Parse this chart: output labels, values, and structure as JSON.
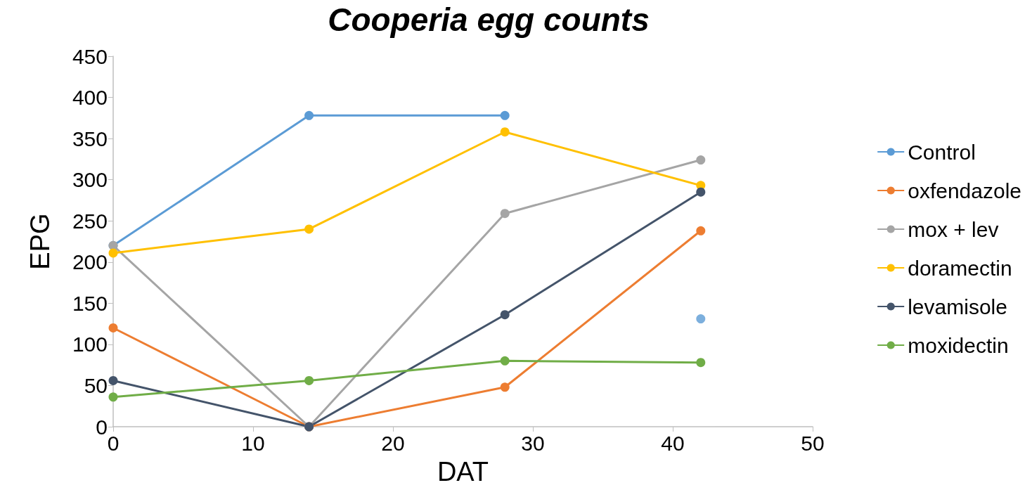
{
  "chart_data": {
    "type": "line",
    "title": "Cooperia egg counts",
    "xlabel": "DAT",
    "ylabel": "EPG",
    "x": [
      0,
      14,
      28,
      42
    ],
    "xlim": [
      0,
      50
    ],
    "xticks": [
      0,
      10,
      20,
      30,
      40,
      50
    ],
    "ylim": [
      0,
      450
    ],
    "yticks": [
      0,
      50,
      100,
      150,
      200,
      250,
      300,
      350,
      400,
      450
    ],
    "grid": false,
    "legend": "right",
    "marker": "circle",
    "line_style": "solid",
    "series": [
      {
        "name": "Control",
        "color": "#5b9bd5",
        "x": [
          0,
          14,
          28
        ],
        "values": [
          220,
          378,
          378
        ]
      },
      {
        "name": "oxfendazole",
        "color": "#ed7d31",
        "values": [
          120,
          0,
          48,
          238
        ]
      },
      {
        "name": "mox + lev",
        "color": "#a5a5a5",
        "values": [
          220,
          0,
          259,
          324
        ]
      },
      {
        "name": "doramectin",
        "color": "#ffc000",
        "values": [
          211,
          240,
          358,
          293
        ]
      },
      {
        "name": "levamisole",
        "color": "#44546a",
        "values": [
          56,
          0,
          136,
          285
        ]
      },
      {
        "name": "moxidectin",
        "color": "#70ad47",
        "values": [
          36,
          56,
          80,
          78
        ]
      },
      {
        "type": "scatter",
        "color": "#5b9bd5",
        "x": [
          42
        ],
        "values": [
          131
        ]
      }
    ]
  }
}
